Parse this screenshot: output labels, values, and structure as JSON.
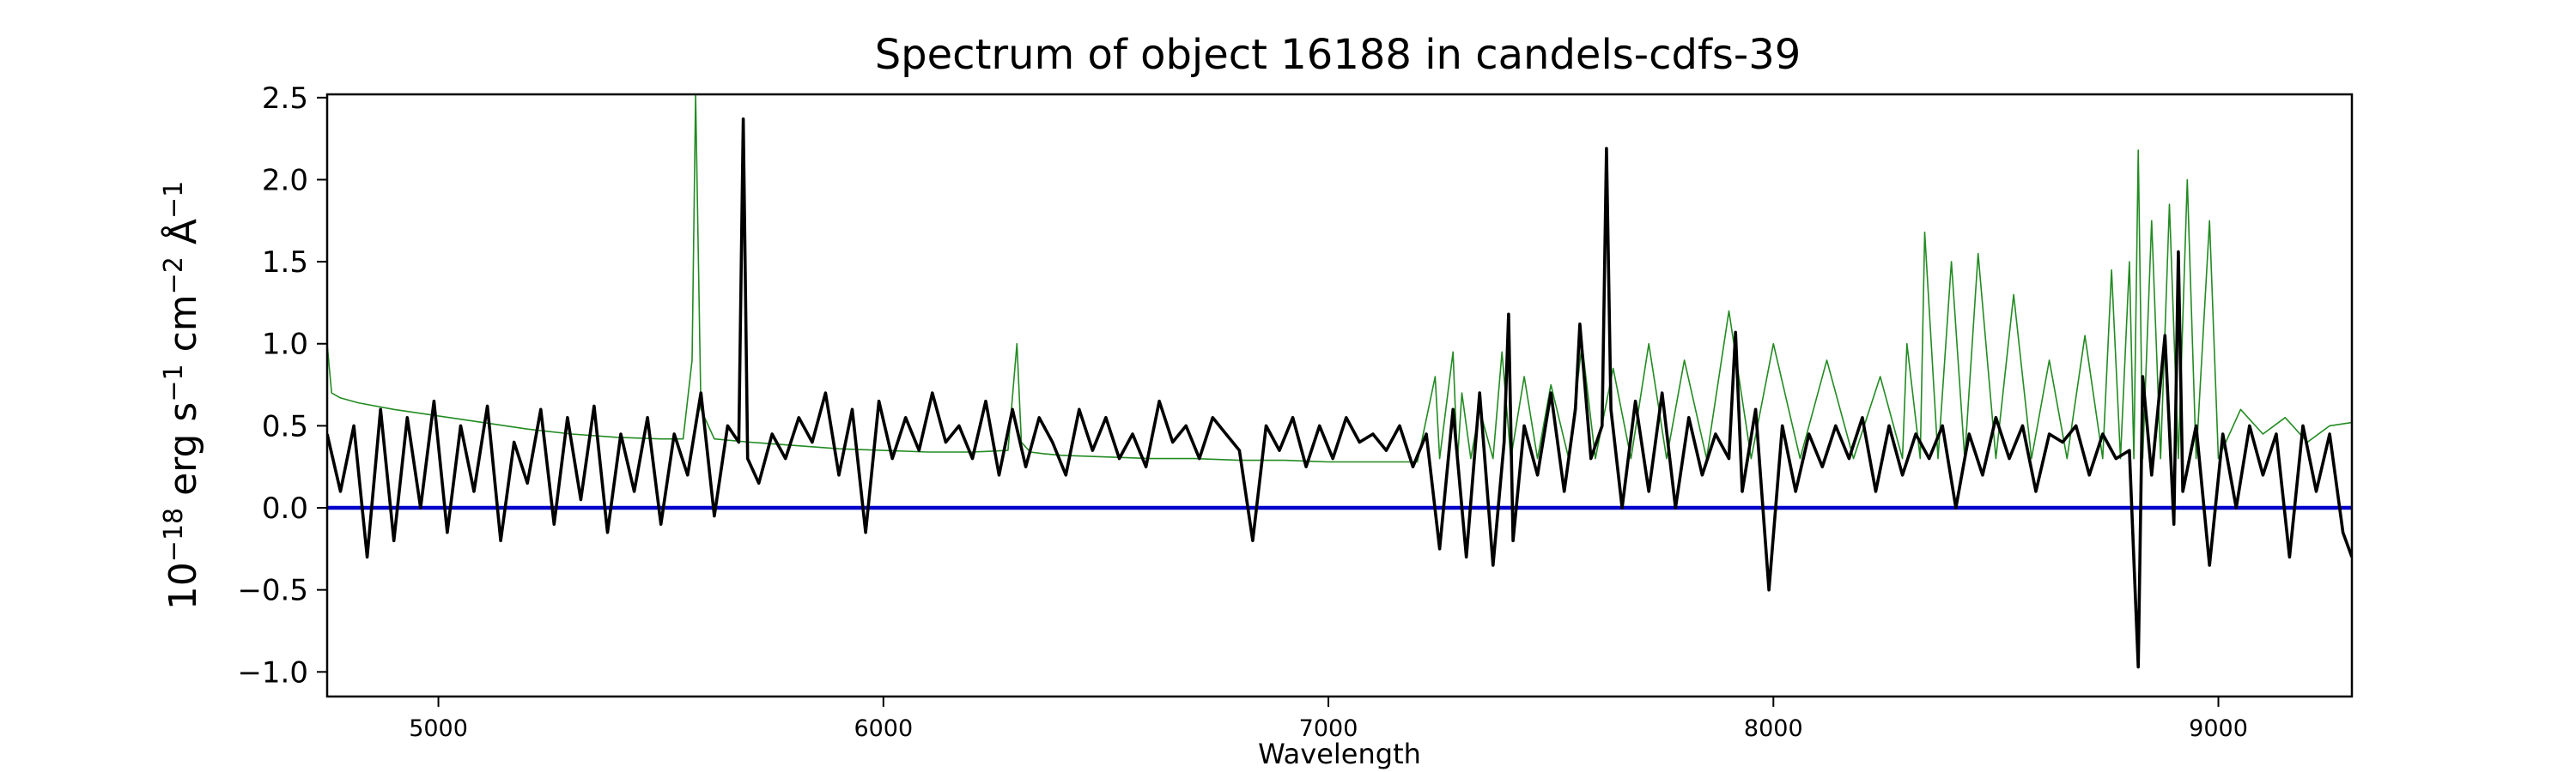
{
  "chart_data": {
    "type": "line",
    "title": "Spectrum of object 16188 in candels-cdfs-39",
    "xlabel": "Wavelength",
    "ylabel_base": "10",
    "ylabel_base_exp": "−18",
    "ylabel_mid1": " erg s",
    "ylabel_exp1": "−1",
    "ylabel_mid2": " cm",
    "ylabel_exp2": "−2",
    "ylabel_mid3": " Å",
    "ylabel_exp3": "−1",
    "xlim": [
      4750,
      9300
    ],
    "ylim": [
      -1.15,
      2.52
    ],
    "xticks": [
      5000,
      6000,
      7000,
      8000,
      9000
    ],
    "xtick_labels": [
      "5000",
      "6000",
      "7000",
      "8000",
      "9000"
    ],
    "yticks": [
      -1.0,
      -0.5,
      0.0,
      0.5,
      1.0,
      1.5,
      2.0,
      2.5
    ],
    "ytick_labels": [
      "−1.0",
      "−0.5",
      "0.0",
      "0.5",
      "1.0",
      "1.5",
      "2.0",
      "2.5"
    ],
    "grid": false,
    "colors": {
      "flux": "#000000",
      "error": "#228b22",
      "zero_line": "#0000cc"
    },
    "series": [
      {
        "x": [
          4750,
          4780,
          4810,
          4840,
          4870,
          4900,
          4930,
          4960,
          4990,
          5020,
          5050,
          5080,
          5110,
          5140,
          5170,
          5200,
          5230,
          5260,
          5290,
          5320,
          5350,
          5380,
          5410,
          5440,
          5470,
          5500,
          5530,
          5560,
          5590,
          5620,
          5650,
          5675,
          5685,
          5695,
          5720,
          5750,
          5780,
          5810,
          5840,
          5870,
          5900,
          5930,
          5960,
          5990,
          6020,
          6050,
          6080,
          6110,
          6140,
          6170,
          6200,
          6230,
          6260,
          6290,
          6320,
          6350,
          6380,
          6410,
          6440,
          6470,
          6500,
          6530,
          6560,
          6590,
          6620,
          6650,
          6680,
          6710,
          6740,
          6770,
          6800,
          6830,
          6860,
          6890,
          6920,
          6950,
          6980,
          7010,
          7040,
          7070,
          7100,
          7130,
          7160,
          7190,
          7220,
          7250,
          7280,
          7310,
          7340,
          7370,
          7395,
          7405,
          7415,
          7440,
          7470,
          7500,
          7530,
          7555,
          7565,
          7590,
          7615,
          7625,
          7635,
          7660,
          7690,
          7720,
          7750,
          7780,
          7810,
          7840,
          7870,
          7900,
          7915,
          7930,
          7960,
          7990,
          8020,
          8050,
          8080,
          8110,
          8140,
          8170,
          8200,
          8230,
          8260,
          8290,
          8320,
          8350,
          8380,
          8410,
          8440,
          8470,
          8500,
          8530,
          8560,
          8590,
          8620,
          8650,
          8680,
          8710,
          8740,
          8770,
          8800,
          8820,
          8830,
          8850,
          8880,
          8900,
          8910,
          8920,
          8950,
          8980,
          9010,
          9040,
          9070,
          9100,
          9130,
          9160,
          9190,
          9220,
          9250,
          9280,
          9300
        ],
        "y": [
          0.45,
          0.1,
          0.5,
          -0.3,
          0.6,
          -0.2,
          0.55,
          0.0,
          0.65,
          -0.15,
          0.5,
          0.1,
          0.62,
          -0.2,
          0.4,
          0.15,
          0.6,
          -0.1,
          0.55,
          0.05,
          0.62,
          -0.15,
          0.45,
          0.1,
          0.55,
          -0.1,
          0.45,
          0.2,
          0.7,
          -0.05,
          0.5,
          0.4,
          2.37,
          0.3,
          0.15,
          0.45,
          0.3,
          0.55,
          0.4,
          0.7,
          0.2,
          0.6,
          -0.15,
          0.65,
          0.3,
          0.55,
          0.35,
          0.7,
          0.4,
          0.5,
          0.3,
          0.65,
          0.2,
          0.6,
          0.25,
          0.55,
          0.4,
          0.2,
          0.6,
          0.35,
          0.55,
          0.3,
          0.45,
          0.25,
          0.65,
          0.4,
          0.5,
          0.3,
          0.55,
          0.45,
          0.35,
          -0.2,
          0.5,
          0.35,
          0.55,
          0.25,
          0.5,
          0.3,
          0.55,
          0.4,
          0.45,
          0.35,
          0.5,
          0.25,
          0.45,
          -0.25,
          0.6,
          -0.3,
          0.7,
          -0.35,
          0.4,
          1.18,
          -0.2,
          0.5,
          0.2,
          0.7,
          0.1,
          0.6,
          1.12,
          0.3,
          0.5,
          2.19,
          0.6,
          0.0,
          0.65,
          0.1,
          0.7,
          0.0,
          0.55,
          0.2,
          0.45,
          0.3,
          1.07,
          0.1,
          0.6,
          -0.5,
          0.5,
          0.1,
          0.45,
          0.25,
          0.5,
          0.3,
          0.55,
          0.1,
          0.5,
          0.2,
          0.45,
          0.3,
          0.5,
          0.0,
          0.45,
          0.2,
          0.55,
          0.3,
          0.5,
          0.1,
          0.45,
          0.4,
          0.5,
          0.2,
          0.45,
          0.3,
          0.35,
          -0.97,
          0.8,
          0.2,
          1.05,
          -0.1,
          1.56,
          0.1,
          0.5,
          -0.35,
          0.45,
          0.0,
          0.5,
          0.2,
          0.45,
          -0.3,
          0.5,
          0.1,
          0.45,
          -0.15,
          -0.3
        ],
        "name": ""
      },
      {
        "x": [
          4750,
          4760,
          4780,
          4820,
          4900,
          5000,
          5100,
          5200,
          5300,
          5400,
          5500,
          5550,
          5570,
          5578,
          5590,
          5620,
          5700,
          5800,
          5900,
          6000,
          6100,
          6200,
          6280,
          6300,
          6310,
          6330,
          6360,
          6400,
          6500,
          6600,
          6700,
          6800,
          6900,
          7000,
          7100,
          7200,
          7240,
          7250,
          7280,
          7290,
          7300,
          7320,
          7340,
          7370,
          7390,
          7410,
          7440,
          7470,
          7500,
          7540,
          7570,
          7600,
          7640,
          7680,
          7720,
          7760,
          7800,
          7850,
          7900,
          7950,
          8000,
          8060,
          8120,
          8180,
          8240,
          8290,
          8300,
          8330,
          8340,
          8370,
          8400,
          8430,
          8460,
          8500,
          8540,
          8580,
          8620,
          8660,
          8700,
          8740,
          8760,
          8780,
          8800,
          8810,
          8820,
          8830,
          8850,
          8870,
          8890,
          8910,
          8930,
          8950,
          8980,
          9000,
          9050,
          9100,
          9150,
          9200,
          9250,
          9300
        ],
        "y": [
          1.0,
          0.7,
          0.67,
          0.64,
          0.6,
          0.56,
          0.52,
          0.48,
          0.45,
          0.43,
          0.42,
          0.42,
          0.9,
          2.52,
          0.6,
          0.42,
          0.4,
          0.38,
          0.36,
          0.35,
          0.34,
          0.34,
          0.35,
          1.0,
          0.4,
          0.34,
          0.33,
          0.32,
          0.31,
          0.3,
          0.3,
          0.29,
          0.29,
          0.28,
          0.28,
          0.28,
          0.8,
          0.3,
          0.95,
          0.28,
          0.7,
          0.3,
          0.6,
          0.3,
          0.95,
          0.3,
          0.8,
          0.3,
          0.75,
          0.3,
          1.0,
          0.3,
          0.85,
          0.3,
          1.0,
          0.3,
          0.9,
          0.3,
          1.2,
          0.3,
          1.0,
          0.3,
          0.9,
          0.3,
          0.8,
          0.3,
          1.0,
          0.3,
          1.68,
          0.3,
          1.5,
          0.3,
          1.55,
          0.3,
          1.3,
          0.3,
          0.9,
          0.3,
          1.05,
          0.3,
          1.45,
          0.3,
          1.5,
          0.3,
          2.18,
          0.3,
          1.75,
          0.3,
          1.85,
          0.3,
          2.0,
          0.3,
          1.75,
          0.3,
          0.6,
          0.45,
          0.55,
          0.4,
          0.5,
          0.52
        ],
        "name": ""
      },
      {
        "x": [
          4750,
          9300
        ],
        "y": [
          0.0,
          0.0
        ],
        "name": ""
      }
    ]
  }
}
